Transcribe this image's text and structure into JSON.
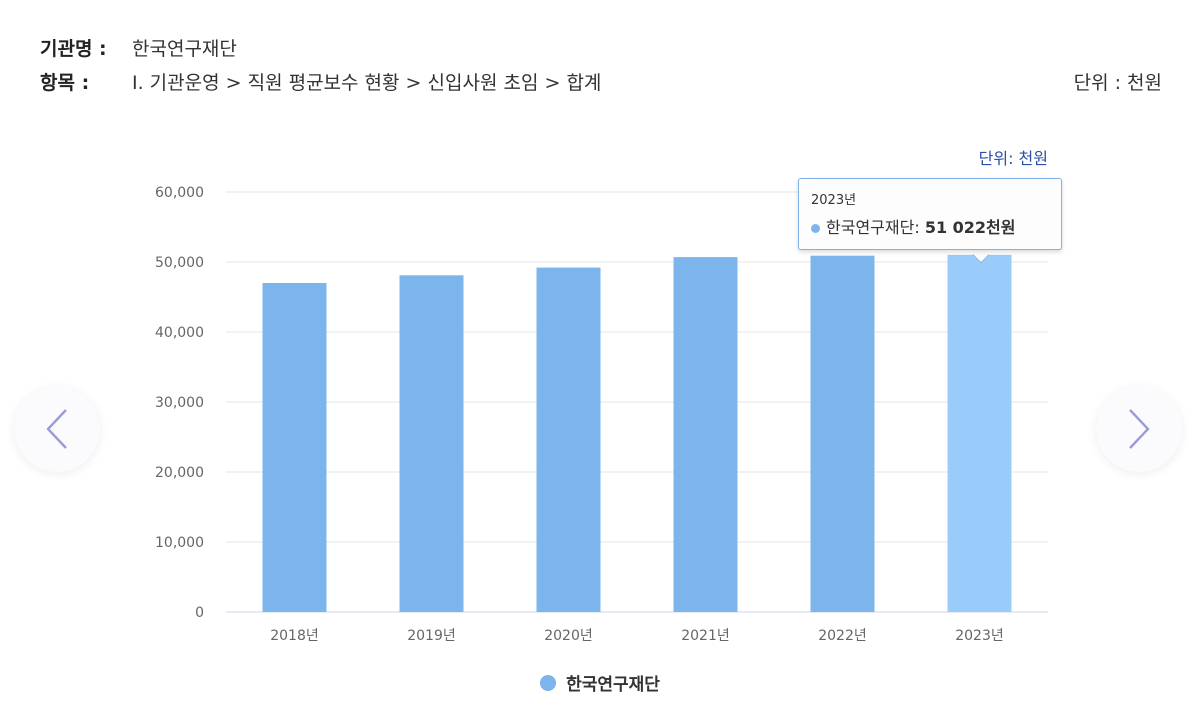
{
  "header": {
    "org_label": "기관명 :",
    "org_value": "한국연구재단",
    "item_label": "항목 :",
    "item_value": "I. 기관운영 > 직원 평균보수 현황 > 신입사원 초임 > 합계",
    "unit_text": "단위 : 천원"
  },
  "chart_unit": "단위: 천원",
  "tooltip": {
    "year": "2023년",
    "series": "한국연구재단",
    "value_text": "51 022천원"
  },
  "legend": {
    "label": "한국연구재단"
  },
  "colors": {
    "bar": "#7cb5ec",
    "bar_highlight": "#99ccfa",
    "grid": "#e6e6e6",
    "axis_text": "#666666",
    "unit_text": "#2a4fa8",
    "nav_arrow": "#9b9bd8"
  },
  "icons": {
    "prev": "chevron-left-icon",
    "next": "chevron-right-icon"
  },
  "chart_data": {
    "type": "bar",
    "categories": [
      "2018년",
      "2019년",
      "2020년",
      "2021년",
      "2022년",
      "2023년"
    ],
    "series": [
      {
        "name": "한국연구재단",
        "values": [
          47000,
          48100,
          49200,
          50700,
          50900,
          51022
        ]
      }
    ],
    "y_ticks": [
      "0",
      "10,000",
      "20,000",
      "30,000",
      "40,000",
      "50,000",
      "60,000"
    ],
    "ylim": [
      0,
      60000
    ],
    "highlighted_index": 5,
    "grid": true,
    "legend_position": "bottom-center"
  }
}
